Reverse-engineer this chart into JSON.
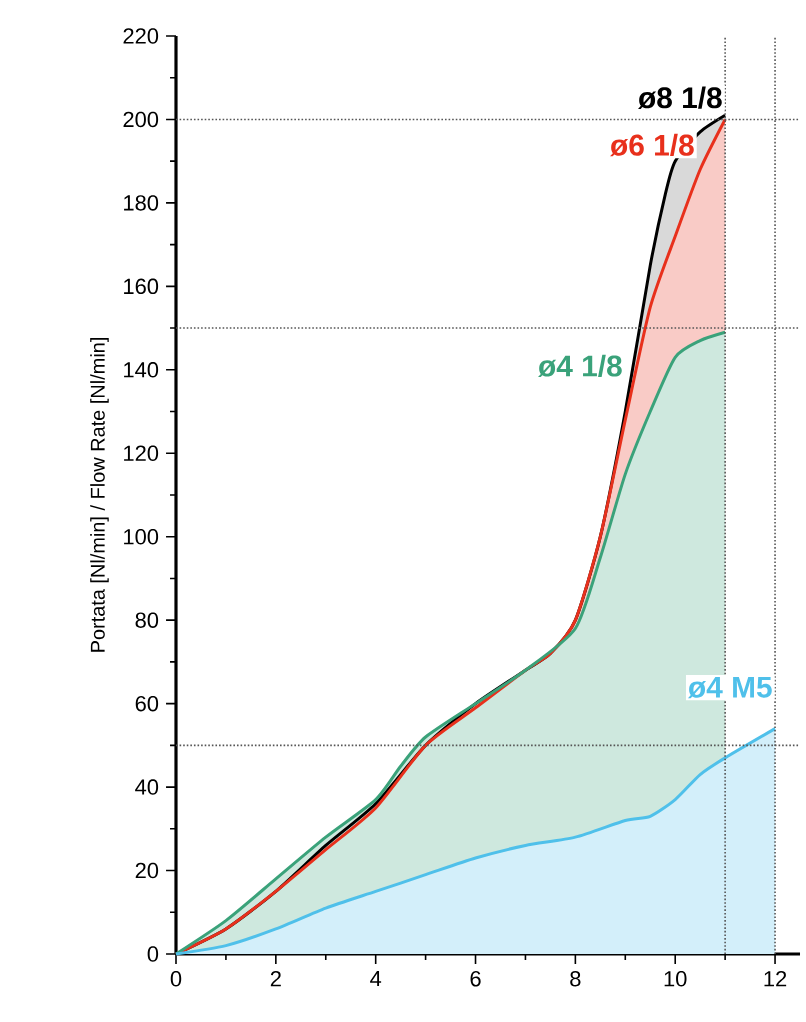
{
  "chart_data": {
    "type": "area",
    "ylabel": "Portata [Nl/min] / Flow Rate [Nl/min]",
    "xlim": [
      0,
      12.5
    ],
    "ylim": [
      0,
      220
    ],
    "xticks": [
      0,
      2,
      4,
      6,
      8,
      10,
      12
    ],
    "yticks": [
      0,
      20,
      40,
      60,
      80,
      100,
      120,
      140,
      160,
      180,
      200,
      220
    ],
    "marker": "none",
    "line_style": "solid",
    "series": [
      {
        "name": "ø8 1/8",
        "color": "#000000",
        "x": [
          0,
          1,
          2,
          3,
          4,
          5,
          6,
          7,
          7.5,
          8,
          8.5,
          9,
          9.5,
          9.8,
          10,
          10.5,
          11
        ],
        "values": [
          0,
          6,
          15,
          26,
          36,
          50,
          60,
          68,
          72,
          80,
          100,
          130,
          165,
          182,
          190,
          197,
          201
        ]
      },
      {
        "name": "ø6 1/8",
        "color": "#e8301c",
        "x": [
          0,
          1,
          2,
          3,
          4,
          5,
          6,
          7,
          7.5,
          8,
          8.5,
          9,
          9.5,
          10,
          10.5,
          11
        ],
        "values": [
          0,
          6,
          15,
          25,
          35,
          50,
          59,
          68,
          72,
          80,
          100,
          128,
          155,
          172,
          188,
          200
        ]
      },
      {
        "name": "ø4 1/8",
        "color": "#3aa27a",
        "x": [
          0,
          1,
          2,
          3,
          4,
          4.5,
          5,
          6,
          7,
          8,
          8.5,
          9,
          9.5,
          10,
          10.5,
          11
        ],
        "values": [
          0,
          8,
          18,
          28,
          37,
          45,
          52,
          60,
          68,
          78,
          95,
          115,
          130,
          143,
          147,
          149
        ]
      },
      {
        "name": "ø4 M5",
        "color": "#4fc0ea",
        "x": [
          0,
          1,
          2,
          3,
          4,
          5,
          6,
          7,
          8,
          9,
          9.5,
          10,
          10.5,
          11,
          12
        ],
        "values": [
          0,
          2,
          6,
          11,
          15,
          19,
          23,
          26,
          28,
          32,
          33,
          37,
          43,
          47,
          54
        ]
      }
    ],
    "ref_lines": [
      {
        "axis": "y",
        "value": 200,
        "line_style": "dotted",
        "color": "#555555"
      },
      {
        "axis": "y",
        "value": 150,
        "line_style": "dotted",
        "color": "#555555"
      },
      {
        "axis": "y",
        "value": 50,
        "line_style": "dotted",
        "color": "#555555"
      },
      {
        "axis": "x",
        "value": 11,
        "line_style": "dotted",
        "color": "#555555"
      },
      {
        "axis": "x",
        "value": 12,
        "line_style": "dotted",
        "color": "#555555"
      }
    ]
  }
}
